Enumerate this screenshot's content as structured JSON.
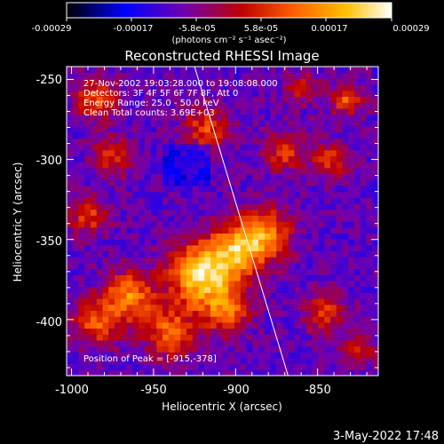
{
  "window": {
    "timestamp": "3-May-2022 17:48"
  },
  "colorbar": {
    "ticks": [
      "-0.00029",
      "-0.00017",
      "-5.8e-05",
      "5.8e-05",
      "0.00017",
      "0.00029"
    ],
    "unit_label": "(photons cm⁻² s⁻¹ asec⁻²)",
    "range": [
      -0.00029,
      0.00029
    ],
    "palette": [
      "#000000",
      "#0000ff",
      "#7000b0",
      "#c00000",
      "#ff6000",
      "#ffc000",
      "#ffffff"
    ]
  },
  "chart_data": {
    "type": "heatmap",
    "title": "Reconstructed RHESSI Image",
    "xlabel": "Heliocentric X (arcsec)",
    "ylabel": "Heliocentric Y (arcsec)",
    "xlim": [
      -1003,
      -813
    ],
    "ylim": [
      -435,
      -242
    ],
    "xticks": [
      -1000,
      -950,
      -900,
      -850
    ],
    "yticks": [
      -250,
      -300,
      -350,
      -400
    ],
    "annotations": [
      "27-Nov-2002 19:03:28.000 to 19:08:08.000",
      "Detectors: 3F 4F 5F 6F 7F 8F, Att 0",
      "Energy Range: 25.0 - 50.0 keV",
      "Clean    Total counts: 3.69E+03"
    ],
    "peak_label": "Position of Peak = [-915,-378]",
    "peak": [
      -915,
      -378
    ],
    "limb": {
      "start": [
        -925,
        -242
      ],
      "end": [
        -868,
        -435
      ]
    },
    "sources": [
      {
        "x": -920,
        "y": -372,
        "amp": 1.0,
        "sigma": 14
      },
      {
        "x": -897,
        "y": -355,
        "amp": 0.75,
        "sigma": 12
      },
      {
        "x": -965,
        "y": -385,
        "amp": 0.7,
        "sigma": 11
      },
      {
        "x": -985,
        "y": -402,
        "amp": 0.55,
        "sigma": 10
      },
      {
        "x": -940,
        "y": -408,
        "amp": 0.6,
        "sigma": 11
      },
      {
        "x": -905,
        "y": -395,
        "amp": 0.55,
        "sigma": 10
      },
      {
        "x": -985,
        "y": -262,
        "amp": 0.55,
        "sigma": 9
      },
      {
        "x": -975,
        "y": -298,
        "amp": 0.45,
        "sigma": 9
      },
      {
        "x": -918,
        "y": -280,
        "amp": 0.5,
        "sigma": 10
      },
      {
        "x": -880,
        "y": -345,
        "amp": 0.55,
        "sigma": 11
      },
      {
        "x": -870,
        "y": -295,
        "amp": 0.45,
        "sigma": 9
      },
      {
        "x": -832,
        "y": -262,
        "amp": 0.55,
        "sigma": 7
      },
      {
        "x": -842,
        "y": -300,
        "amp": 0.45,
        "sigma": 8
      },
      {
        "x": -845,
        "y": -395,
        "amp": 0.45,
        "sigma": 9
      },
      {
        "x": -990,
        "y": -335,
        "amp": 0.5,
        "sigma": 8
      },
      {
        "x": -825,
        "y": -418,
        "amp": 0.4,
        "sigma": 7
      },
      {
        "x": -860,
        "y": -255,
        "amp": 0.35,
        "sigma": 7
      }
    ]
  }
}
